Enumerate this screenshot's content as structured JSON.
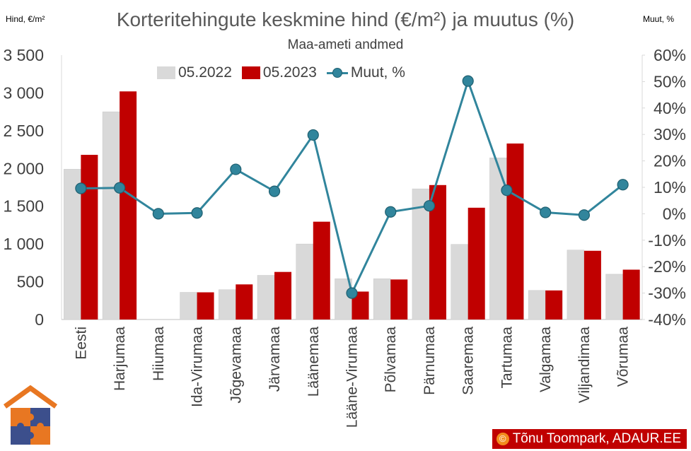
{
  "chart_data": {
    "type": "bar",
    "title": "Korteritehingute keskmine hind (€/m²) ja muutus (%)",
    "subtitle": "Maa-ameti andmed",
    "ylabel_left": "Hind, €/m²",
    "ylabel_right": "Muut, %",
    "categories": [
      "Eesti",
      "Harjumaa",
      "Hiiumaa",
      "Ida-Virumaa",
      "Jõgevamaa",
      "Järvamaa",
      "Läänemaa",
      "Lääne-Virumaa",
      "Põlvamaa",
      "Pärnumaa",
      "Saaremaa",
      "Tartumaa",
      "Valgamaa",
      "Viljandimaa",
      "Võrumaa"
    ],
    "ylim_left": [
      0,
      3500
    ],
    "ylim_right": [
      -40,
      60
    ],
    "left_ticks": [
      "0",
      "500",
      "1 000",
      "1 500",
      "2 000",
      "2 500",
      "3 000",
      "3 500"
    ],
    "right_ticks": [
      "-40%",
      "-30%",
      "-20%",
      "-10%",
      "0%",
      "10%",
      "20%",
      "30%",
      "40%",
      "50%",
      "60%"
    ],
    "series": [
      {
        "name": "05.2022",
        "axis": "left",
        "kind": "bar",
        "color": "#d9d9d9",
        "values": [
          1990,
          2750,
          null,
          360,
          395,
          585,
          1000,
          540,
          540,
          1730,
          995,
          2140,
          385,
          920,
          600
        ]
      },
      {
        "name": "05.2023",
        "axis": "left",
        "kind": "bar",
        "color": "#c00000",
        "values": [
          2180,
          3020,
          null,
          360,
          465,
          630,
          1295,
          370,
          530,
          1780,
          1480,
          2330,
          385,
          910,
          660
        ]
      },
      {
        "name": "Muut, %",
        "axis": "right",
        "kind": "line",
        "color": "#31859c",
        "values": [
          9.6,
          9.8,
          0,
          0.3,
          16.8,
          8.5,
          29.8,
          -30,
          0.7,
          3,
          50.2,
          8.9,
          0.5,
          -0.5,
          11
        ]
      }
    ],
    "grid": false,
    "legend_position": "top"
  },
  "credit": "Tõnu Toompark, ADAUR.EE",
  "credit_symbol": "©"
}
